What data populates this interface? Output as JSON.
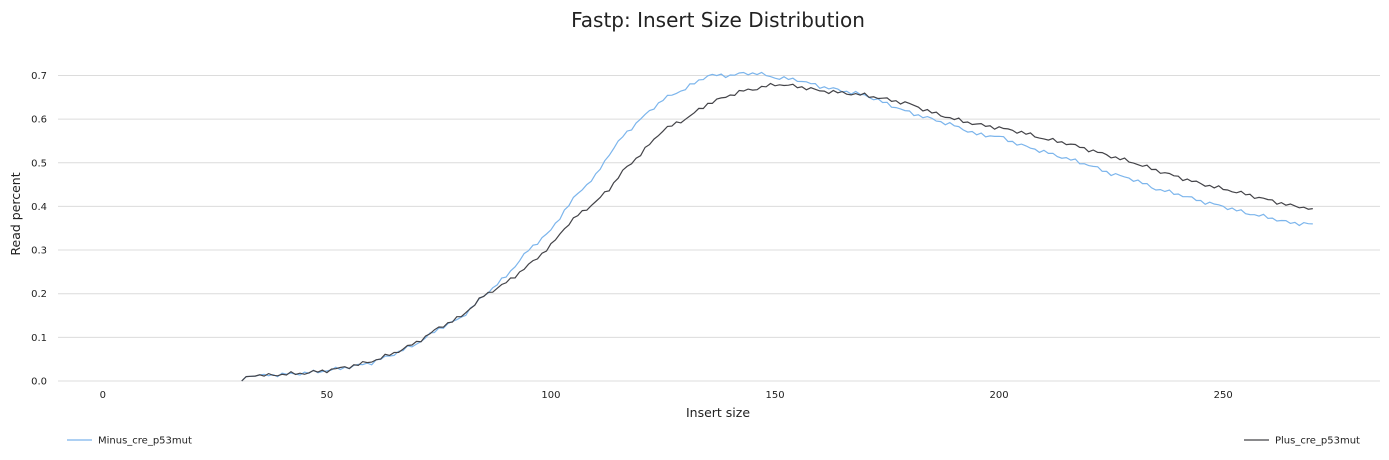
{
  "chart_data": {
    "type": "line",
    "title": "Fastp: Insert Size Distribution",
    "xlabel": "Insert size",
    "ylabel": "Read percent",
    "xlim": [
      -10,
      285
    ],
    "ylim": [
      0,
      0.74
    ],
    "xticks": [
      0,
      50,
      100,
      150,
      200,
      250
    ],
    "yticks": [
      0.0,
      0.1,
      0.2,
      0.3,
      0.4,
      0.5,
      0.6,
      0.7
    ],
    "xtick_labels": [
      "0",
      "50",
      "100",
      "150",
      "200",
      "250"
    ],
    "ytick_labels": [
      "0.0",
      "0.1",
      "0.2",
      "0.3",
      "0.4",
      "0.5",
      "0.6",
      "0.7"
    ],
    "grid": "horizontal",
    "legend": "bottom",
    "series": [
      {
        "name": "Minus_cre_p53mut",
        "color": "#7cb5ec",
        "points": [
          [
            31,
            0.0
          ],
          [
            32,
            0.01
          ],
          [
            35,
            0.012
          ],
          [
            40,
            0.015
          ],
          [
            45,
            0.018
          ],
          [
            50,
            0.024
          ],
          [
            55,
            0.032
          ],
          [
            60,
            0.042
          ],
          [
            65,
            0.062
          ],
          [
            70,
            0.085
          ],
          [
            75,
            0.12
          ],
          [
            80,
            0.145
          ],
          [
            85,
            0.195
          ],
          [
            90,
            0.24
          ],
          [
            95,
            0.3
          ],
          [
            100,
            0.345
          ],
          [
            103,
            0.39
          ],
          [
            106,
            0.43
          ],
          [
            110,
            0.47
          ],
          [
            113,
            0.52
          ],
          [
            116,
            0.56
          ],
          [
            120,
            0.6
          ],
          [
            125,
            0.645
          ],
          [
            130,
            0.67
          ],
          [
            135,
            0.7
          ],
          [
            140,
            0.7
          ],
          [
            143,
            0.705
          ],
          [
            146,
            0.705
          ],
          [
            150,
            0.695
          ],
          [
            155,
            0.69
          ],
          [
            160,
            0.675
          ],
          [
            165,
            0.665
          ],
          [
            170,
            0.655
          ],
          [
            175,
            0.635
          ],
          [
            180,
            0.615
          ],
          [
            185,
            0.6
          ],
          [
            190,
            0.585
          ],
          [
            195,
            0.565
          ],
          [
            200,
            0.56
          ],
          [
            205,
            0.54
          ],
          [
            210,
            0.525
          ],
          [
            215,
            0.51
          ],
          [
            220,
            0.495
          ],
          [
            225,
            0.475
          ],
          [
            230,
            0.462
          ],
          [
            235,
            0.44
          ],
          [
            240,
            0.428
          ],
          [
            245,
            0.412
          ],
          [
            250,
            0.4
          ],
          [
            255,
            0.385
          ],
          [
            260,
            0.375
          ],
          [
            265,
            0.362
          ],
          [
            270,
            0.36
          ]
        ]
      },
      {
        "name": "Plus_cre_p53mut",
        "color": "#434348",
        "points": [
          [
            31,
            0.0
          ],
          [
            32,
            0.01
          ],
          [
            35,
            0.012
          ],
          [
            40,
            0.015
          ],
          [
            45,
            0.018
          ],
          [
            50,
            0.024
          ],
          [
            55,
            0.033
          ],
          [
            60,
            0.045
          ],
          [
            65,
            0.064
          ],
          [
            70,
            0.088
          ],
          [
            75,
            0.122
          ],
          [
            80,
            0.148
          ],
          [
            85,
            0.195
          ],
          [
            90,
            0.225
          ],
          [
            95,
            0.265
          ],
          [
            100,
            0.31
          ],
          [
            103,
            0.35
          ],
          [
            106,
            0.38
          ],
          [
            110,
            0.41
          ],
          [
            113,
            0.44
          ],
          [
            116,
            0.48
          ],
          [
            120,
            0.52
          ],
          [
            125,
            0.575
          ],
          [
            130,
            0.6
          ],
          [
            135,
            0.635
          ],
          [
            140,
            0.655
          ],
          [
            143,
            0.665
          ],
          [
            146,
            0.67
          ],
          [
            150,
            0.68
          ],
          [
            155,
            0.675
          ],
          [
            160,
            0.665
          ],
          [
            165,
            0.66
          ],
          [
            170,
            0.655
          ],
          [
            175,
            0.645
          ],
          [
            180,
            0.635
          ],
          [
            185,
            0.615
          ],
          [
            190,
            0.6
          ],
          [
            195,
            0.588
          ],
          [
            200,
            0.58
          ],
          [
            205,
            0.57
          ],
          [
            210,
            0.555
          ],
          [
            215,
            0.545
          ],
          [
            220,
            0.53
          ],
          [
            225,
            0.515
          ],
          [
            230,
            0.5
          ],
          [
            235,
            0.483
          ],
          [
            240,
            0.467
          ],
          [
            245,
            0.452
          ],
          [
            250,
            0.44
          ],
          [
            255,
            0.428
          ],
          [
            260,
            0.415
          ],
          [
            265,
            0.402
          ],
          [
            270,
            0.395
          ]
        ]
      }
    ]
  }
}
